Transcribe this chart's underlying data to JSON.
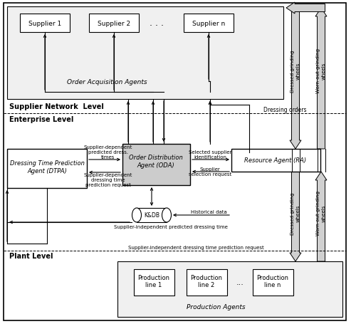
{
  "supplier1": "Supplier 1",
  "supplier2": "Supplier 2",
  "dots": ". . .",
  "suppliern": "Supplier n",
  "oaa": "Order Acquisition Agents",
  "snl": "Supplier Network  Level",
  "el": "Enterprise Level",
  "pl": "Plant Level",
  "dtpa_line1": "Dressing Time Prediction",
  "dtpa_line2": "Agent (DTPA)",
  "oda_line1": "Order Distribution",
  "oda_line2": "Agent (ODA)",
  "ra": "Resource Agent (RA)",
  "kdb": "K&DB",
  "prod1_l1": "Production",
  "prod1_l2": "line 1",
  "prod2_l1": "Production",
  "prod2_l2": "line 2",
  "prodn_l1": "Production",
  "prodn_l2": "line n",
  "prod_dots": "...",
  "pa": "Production Agents",
  "dressing_orders": "Dressing orders",
  "dressed_top": "Dressed grinding\nwheels",
  "worn_top": "Worn out grinding\nwheels",
  "dressed_bot": "Dressed grinding\nwheels",
  "worn_bot": "Worn out grinding\nwheels",
  "sel_sup_id_l1": "Selected supplier",
  "sel_sup_id_l2": "identification",
  "sup_sel_req_l1": "Supplier",
  "sup_sel_req_l2": "selection request",
  "sup_dep_pred_l1": "Supplier-dependent",
  "sup_dep_pred_l2": "predicted dress.",
  "sup_dep_pred_l3": "times",
  "sup_dep_req_l1": "Supplier-dependent",
  "sup_dep_req_l2": "dressing time",
  "sup_dep_req_l3": "prediction request",
  "hist_data": "Historical data",
  "si_pred": "Supplier-independent predicted dressing time",
  "si_req": "Supplier-independent dressing time prediction request"
}
